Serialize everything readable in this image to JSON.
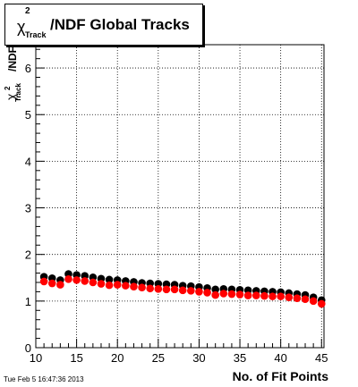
{
  "title": {
    "chi": "χ",
    "sup": "2",
    "sub": "Track",
    "rest": "/NDF  Global Tracks"
  },
  "ylabel": {
    "chi": "χ",
    "sup": "2",
    "sub": "Track",
    "rest": "/NDF"
  },
  "xlabel": "No. of Fit Points",
  "footer": "Tue Feb  5 16:47:36 2013",
  "colors": {
    "series_a": "#000000",
    "series_b": "#ff0000"
  },
  "chart_data": {
    "type": "scatter",
    "xlim": [
      10,
      45.3
    ],
    "ylim": [
      0,
      6.5
    ],
    "x_ticks": [
      10,
      15,
      20,
      25,
      30,
      35,
      40,
      45
    ],
    "y_ticks": [
      0,
      1,
      2,
      3,
      4,
      5,
      6
    ],
    "grid": true,
    "series": [
      {
        "color": "#000000",
        "x": [
          11,
          12,
          13,
          14,
          15,
          16,
          17,
          18,
          19,
          20,
          21,
          22,
          23,
          24,
          25,
          26,
          27,
          28,
          29,
          30,
          31,
          32,
          33,
          34,
          35,
          36,
          37,
          38,
          39,
          40,
          41,
          42,
          43,
          44,
          45
        ],
        "y": [
          1.52,
          1.49,
          1.45,
          1.58,
          1.56,
          1.54,
          1.51,
          1.48,
          1.46,
          1.45,
          1.43,
          1.41,
          1.39,
          1.38,
          1.37,
          1.36,
          1.35,
          1.33,
          1.32,
          1.3,
          1.28,
          1.25,
          1.26,
          1.25,
          1.24,
          1.23,
          1.22,
          1.21,
          1.2,
          1.19,
          1.17,
          1.15,
          1.13,
          1.08,
          1.02
        ]
      },
      {
        "color": "#ff0000",
        "x": [
          11,
          12,
          13,
          14,
          15,
          16,
          17,
          18,
          19,
          20,
          21,
          22,
          23,
          24,
          25,
          26,
          27,
          28,
          29,
          30,
          31,
          32,
          33,
          34,
          35,
          36,
          37,
          38,
          39,
          40,
          41,
          42,
          43,
          44,
          45
        ],
        "y": [
          1.42,
          1.38,
          1.35,
          1.47,
          1.45,
          1.43,
          1.4,
          1.37,
          1.34,
          1.35,
          1.33,
          1.31,
          1.29,
          1.27,
          1.26,
          1.25,
          1.25,
          1.23,
          1.22,
          1.2,
          1.18,
          1.13,
          1.16,
          1.15,
          1.14,
          1.12,
          1.12,
          1.11,
          1.1,
          1.1,
          1.08,
          1.06,
          1.04,
          1.0,
          0.94
        ]
      }
    ]
  }
}
